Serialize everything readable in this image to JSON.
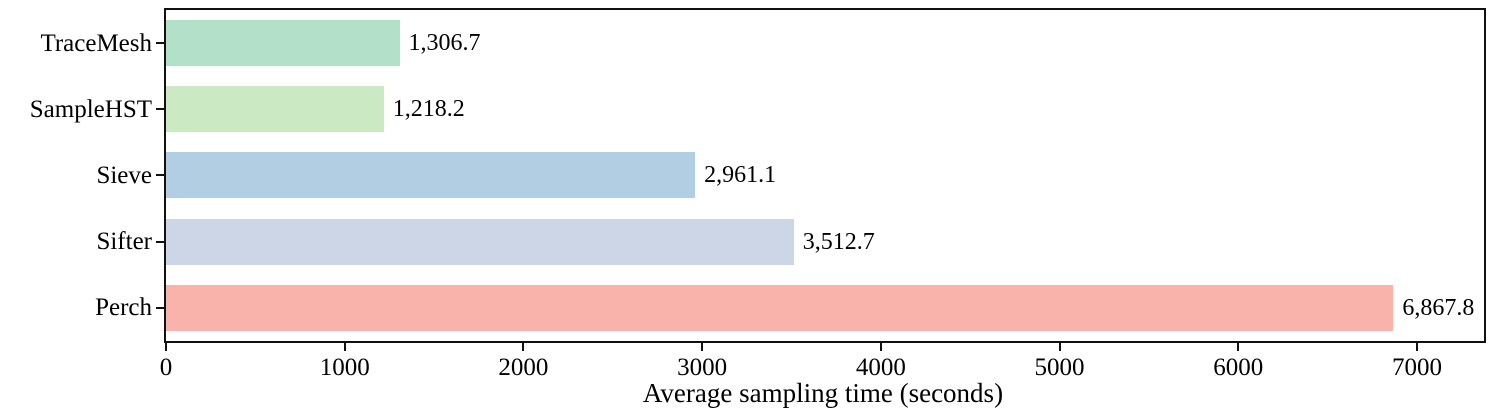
{
  "chart_data": {
    "type": "bar",
    "orientation": "horizontal",
    "title": "",
    "xlabel": "Average sampling time (seconds)",
    "ylabel": "",
    "categories": [
      "TraceMesh",
      "SampleHST",
      "Sieve",
      "Sifter",
      "Perch"
    ],
    "values": [
      1306.7,
      1218.2,
      2961.1,
      3512.7,
      6867.8
    ],
    "value_labels": [
      "1,306.7",
      "1,218.2",
      "2,961.1",
      "3,512.7",
      "6,867.8"
    ],
    "bar_colors": [
      "#b3e0c9",
      "#cbe9c3",
      "#b1cee3",
      "#ccd6e7",
      "#fab3ab"
    ],
    "x_ticks": [
      0,
      1000,
      2000,
      3000,
      4000,
      5000,
      6000,
      7000
    ],
    "x_tick_labels": [
      "0",
      "1000",
      "2000",
      "3000",
      "4000",
      "5000",
      "6000",
      "7000"
    ],
    "xlim": [
      0,
      7375
    ],
    "grid": false,
    "frame": true,
    "legend": null,
    "spine_color": "#111111",
    "background_color": "#ffffff"
  }
}
